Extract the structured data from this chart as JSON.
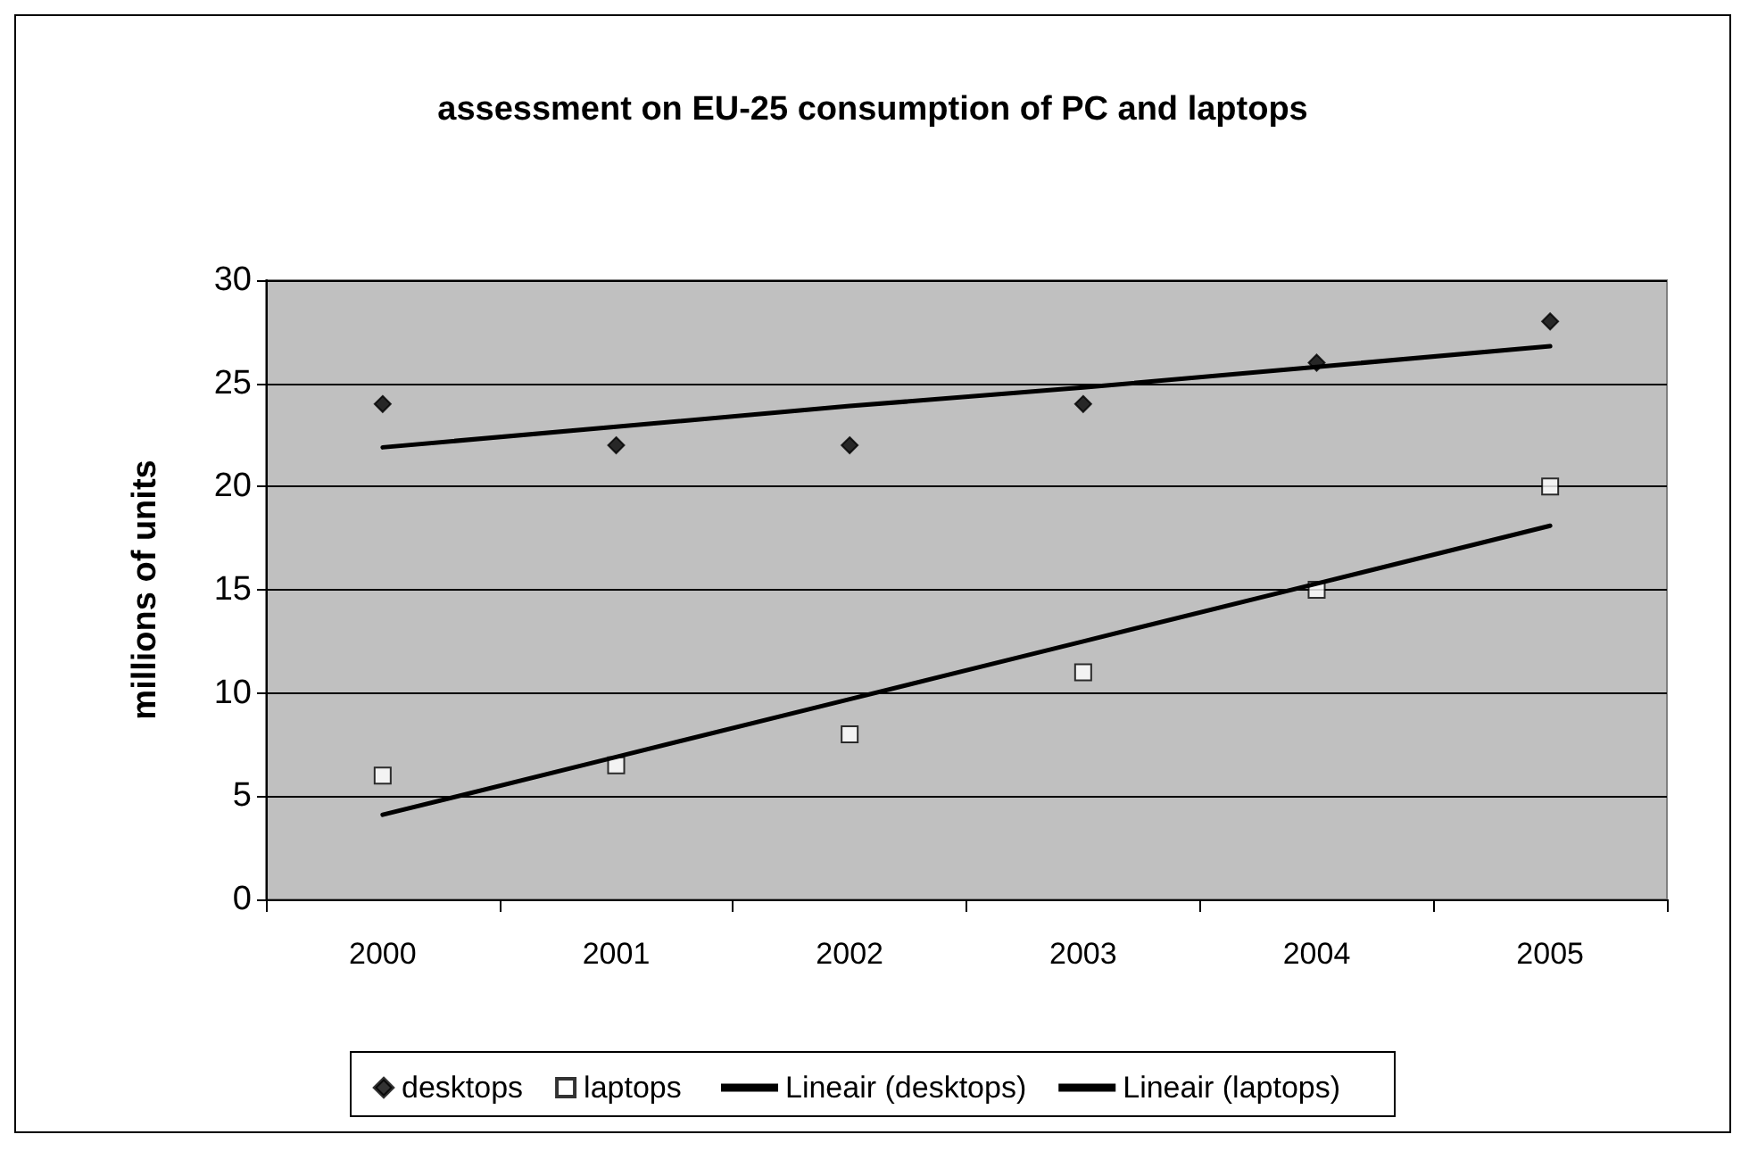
{
  "chart_data": {
    "type": "scatter",
    "title": "assessment on EU-25 consumption of PC and laptops",
    "ylabel": "millions of units",
    "categories": [
      "2000",
      "2001",
      "2002",
      "2003",
      "2004",
      "2005"
    ],
    "series": [
      {
        "name": "desktops",
        "type": "scatter",
        "marker": "diamond",
        "color": "#000000",
        "values": [
          24,
          22,
          22,
          24,
          26,
          28
        ]
      },
      {
        "name": "laptops",
        "type": "scatter",
        "marker": "square",
        "color": "#ffffff",
        "values": [
          6,
          6.5,
          8,
          11,
          15,
          20
        ]
      },
      {
        "name": "Lineair (desktops)",
        "type": "line",
        "marker": "none",
        "color": "#000000",
        "values": [
          21.9,
          22.9,
          23.9,
          24.8,
          25.8,
          26.8
        ]
      },
      {
        "name": "Lineair (laptops)",
        "type": "line",
        "marker": "none",
        "color": "#000000",
        "values": [
          4.1,
          6.9,
          9.7,
          12.5,
          15.3,
          18.1
        ]
      }
    ],
    "ylim": [
      0,
      30
    ],
    "yticks": [
      0,
      5,
      10,
      15,
      20,
      25,
      30
    ],
    "grid": "y",
    "legend": "bottom",
    "line_style": "solid"
  }
}
